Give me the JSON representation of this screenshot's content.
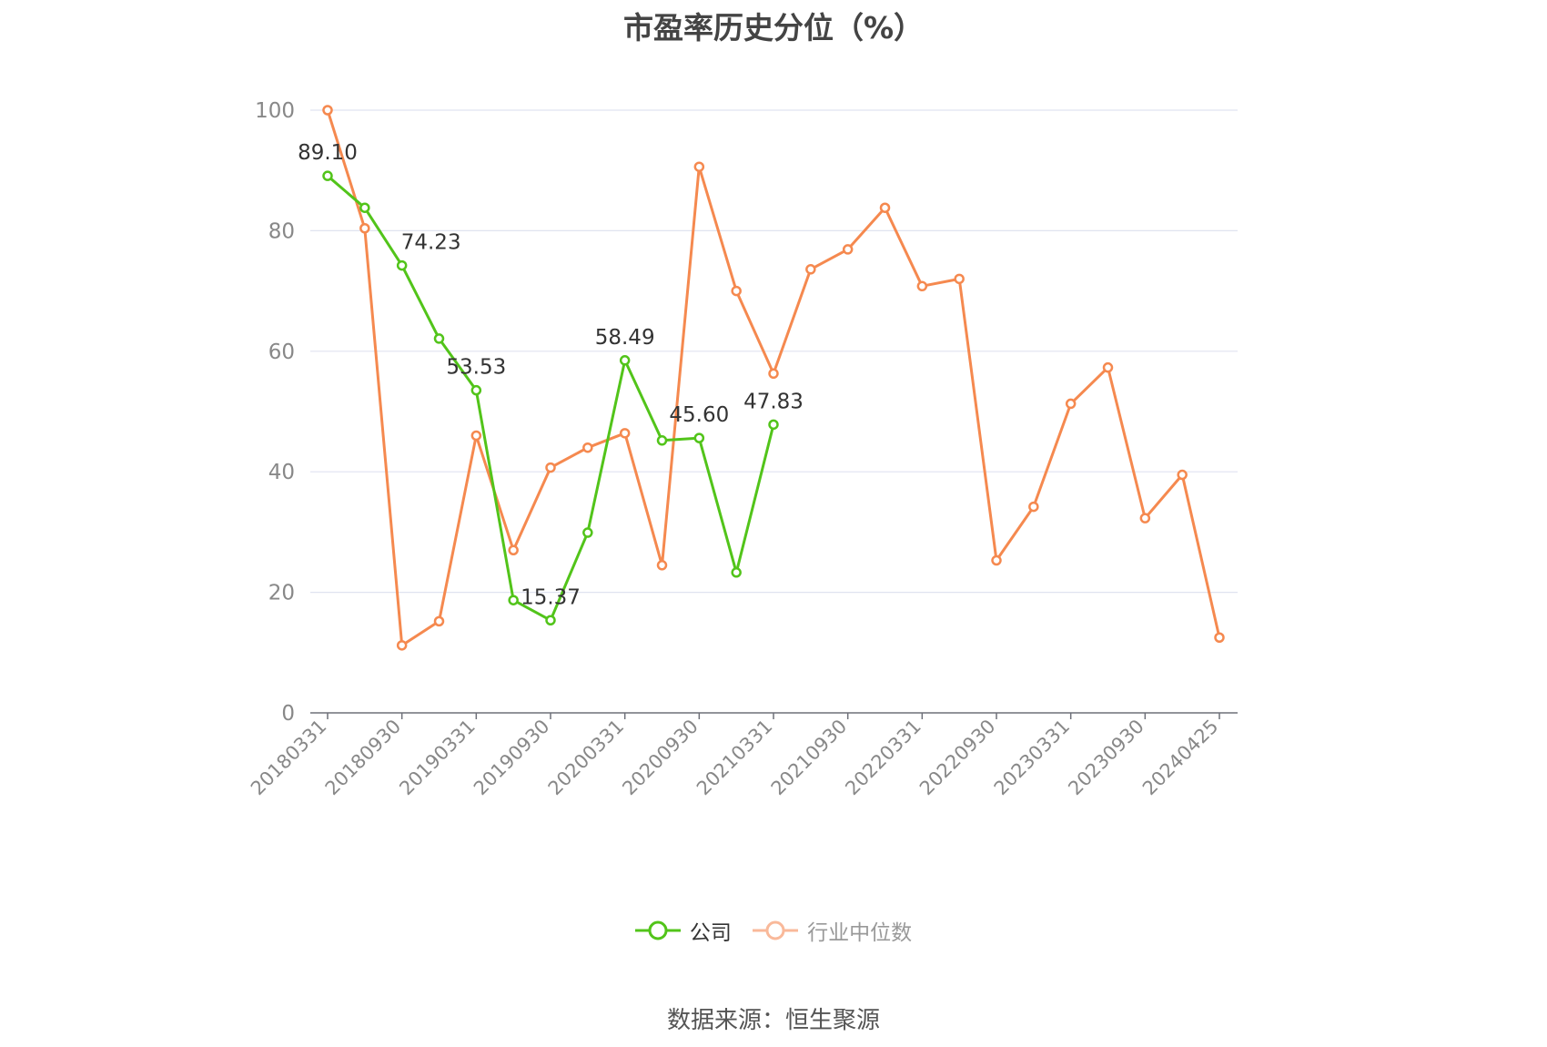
{
  "chart_data": {
    "type": "line",
    "title": "市盈率历史分位（%）",
    "source": "数据来源：恒生聚源",
    "ylim": [
      0,
      100
    ],
    "y_ticks": [
      0,
      20,
      40,
      60,
      80,
      100
    ],
    "x_tick_labels": [
      "20180331",
      "20180930",
      "20190331",
      "20190930",
      "20200331",
      "20200930",
      "20210331",
      "20210930",
      "20220331",
      "20220930",
      "20230331",
      "20230930",
      "20240425"
    ],
    "x": [
      "20180331",
      "20180630",
      "20180930",
      "20181231",
      "20190331",
      "20190630",
      "20190930",
      "20191231",
      "20200331",
      "20200630",
      "20200930",
      "20201231",
      "20210331",
      "20210630",
      "20210930",
      "20211231",
      "20220331",
      "20220630",
      "20220930",
      "20221231",
      "20230331",
      "20230630",
      "20230930",
      "20231231",
      "20240425"
    ],
    "grid": true,
    "legend_position": "bottom-center",
    "series": [
      {
        "name": "公司",
        "color": "#52c41a",
        "values": [
          89.1,
          83.8,
          74.23,
          62.1,
          53.53,
          18.7,
          15.37,
          29.9,
          58.49,
          45.2,
          45.6,
          23.3,
          47.83,
          null,
          null,
          null,
          null,
          null,
          null,
          null,
          null,
          null,
          null,
          null,
          null
        ],
        "labels": {
          "0": "89.10",
          "2": "74.23",
          "4": "53.53",
          "6": "15.37",
          "8": "58.49",
          "10": "45.60",
          "12": "47.83"
        }
      },
      {
        "name": "行业中位数",
        "color": "#f5894f",
        "values": [
          100,
          80.4,
          11.2,
          15.2,
          46.0,
          27.0,
          40.7,
          44.0,
          46.4,
          24.5,
          90.6,
          70.0,
          56.3,
          73.6,
          76.9,
          83.8,
          70.8,
          72.0,
          25.3,
          34.2,
          51.3,
          57.3,
          32.3,
          39.5,
          12.5
        ]
      }
    ]
  }
}
